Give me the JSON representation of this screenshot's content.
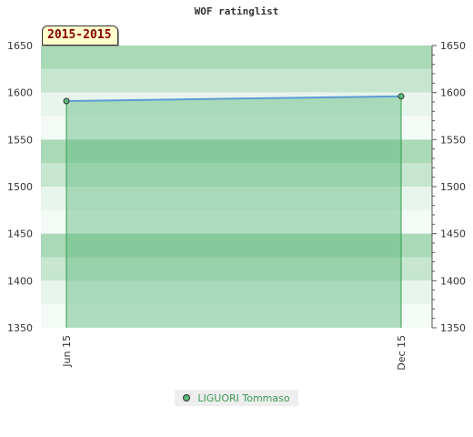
{
  "chart_data": {
    "type": "area",
    "title": "WOF ratinglist",
    "badge": "2015-2015",
    "x": [
      "Jun 15",
      "Dec 15"
    ],
    "series": [
      {
        "name": "LIGUORI Tommaso",
        "values": [
          1591,
          1596
        ]
      }
    ],
    "ylim": [
      1350,
      1650
    ],
    "yticks": [
      1350,
      1400,
      1450,
      1500,
      1550,
      1600,
      1650
    ],
    "xlabel": "",
    "ylabel": "",
    "grid": true,
    "legend": "bottom-center",
    "colors": {
      "band_light": "#e8f5ec",
      "band_mid": "#c6e6cf",
      "band_dark": "#a9d9b6",
      "area_fill": "#5cb97a",
      "area_edge": "#2e9e4f",
      "line": "#5b9bd5",
      "marker": "#5cb97a",
      "legend_text": "#3a9a55"
    }
  }
}
